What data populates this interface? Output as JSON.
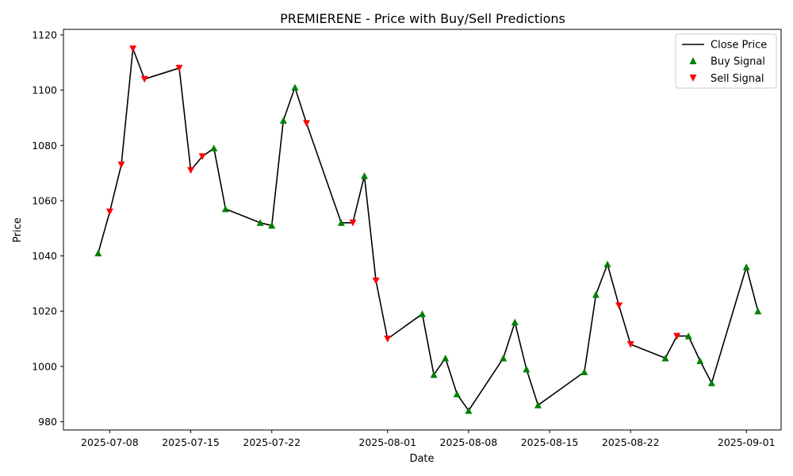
{
  "chart_data": {
    "type": "line",
    "title": "PREMIERENE - Price with Buy/Sell Predictions",
    "xlabel": "Date",
    "ylabel": "Price",
    "xlim": [
      "2025-07-04",
      "2025-09-04"
    ],
    "ylim": [
      977,
      1122
    ],
    "x_ticks": [
      "2025-07-08",
      "2025-07-15",
      "2025-07-22",
      "2025-08-01",
      "2025-08-08",
      "2025-08-15",
      "2025-08-22",
      "2025-09-01"
    ],
    "y_ticks": [
      980,
      1000,
      1020,
      1040,
      1060,
      1080,
      1100,
      1120
    ],
    "legend_position": "top-right",
    "grid": false,
    "colors": {
      "line": "#000000",
      "buy": "#008000",
      "sell": "#ff0000"
    },
    "legend": [
      {
        "label": "Close Price",
        "kind": "line"
      },
      {
        "label": "Buy Signal",
        "kind": "buy"
      },
      {
        "label": "Sell Signal",
        "kind": "sell"
      }
    ],
    "series": [
      {
        "name": "Close Price",
        "points": [
          {
            "date": "2025-07-07",
            "price": 1041,
            "signal": "buy"
          },
          {
            "date": "2025-07-08",
            "price": 1056,
            "signal": "sell"
          },
          {
            "date": "2025-07-09",
            "price": 1073,
            "signal": "sell"
          },
          {
            "date": "2025-07-10",
            "price": 1115,
            "signal": "sell"
          },
          {
            "date": "2025-07-11",
            "price": 1104,
            "signal": "sell"
          },
          {
            "date": "2025-07-14",
            "price": 1108,
            "signal": "sell"
          },
          {
            "date": "2025-07-15",
            "price": 1071,
            "signal": "sell"
          },
          {
            "date": "2025-07-16",
            "price": 1076,
            "signal": "sell"
          },
          {
            "date": "2025-07-17",
            "price": 1079,
            "signal": "buy"
          },
          {
            "date": "2025-07-18",
            "price": 1057,
            "signal": "buy"
          },
          {
            "date": "2025-07-21",
            "price": 1052,
            "signal": "buy"
          },
          {
            "date": "2025-07-22",
            "price": 1051,
            "signal": "buy"
          },
          {
            "date": "2025-07-23",
            "price": 1089,
            "signal": "buy"
          },
          {
            "date": "2025-07-24",
            "price": 1101,
            "signal": "buy"
          },
          {
            "date": "2025-07-25",
            "price": 1088,
            "signal": "sell"
          },
          {
            "date": "2025-07-28",
            "price": 1052,
            "signal": "buy"
          },
          {
            "date": "2025-07-29",
            "price": 1052,
            "signal": "sell"
          },
          {
            "date": "2025-07-30",
            "price": 1069,
            "signal": "buy"
          },
          {
            "date": "2025-07-31",
            "price": 1031,
            "signal": "sell"
          },
          {
            "date": "2025-08-01",
            "price": 1010,
            "signal": "sell"
          },
          {
            "date": "2025-08-04",
            "price": 1019,
            "signal": "buy"
          },
          {
            "date": "2025-08-05",
            "price": 997,
            "signal": "buy"
          },
          {
            "date": "2025-08-06",
            "price": 1003,
            "signal": "buy"
          },
          {
            "date": "2025-08-07",
            "price": 990,
            "signal": "buy"
          },
          {
            "date": "2025-08-08",
            "price": 984,
            "signal": "buy"
          },
          {
            "date": "2025-08-11",
            "price": 1003,
            "signal": "buy"
          },
          {
            "date": "2025-08-12",
            "price": 1016,
            "signal": "buy"
          },
          {
            "date": "2025-08-13",
            "price": 999,
            "signal": "buy"
          },
          {
            "date": "2025-08-14",
            "price": 986,
            "signal": "buy"
          },
          {
            "date": "2025-08-18",
            "price": 998,
            "signal": "buy"
          },
          {
            "date": "2025-08-19",
            "price": 1026,
            "signal": "buy"
          },
          {
            "date": "2025-08-20",
            "price": 1037,
            "signal": "buy"
          },
          {
            "date": "2025-08-21",
            "price": 1022,
            "signal": "sell"
          },
          {
            "date": "2025-08-22",
            "price": 1008,
            "signal": "sell"
          },
          {
            "date": "2025-08-25",
            "price": 1003,
            "signal": "buy"
          },
          {
            "date": "2025-08-26",
            "price": 1011,
            "signal": "sell"
          },
          {
            "date": "2025-08-27",
            "price": 1011,
            "signal": "buy"
          },
          {
            "date": "2025-08-28",
            "price": 1002,
            "signal": "buy"
          },
          {
            "date": "2025-08-29",
            "price": 994,
            "signal": "buy"
          },
          {
            "date": "2025-09-01",
            "price": 1036,
            "signal": "buy"
          },
          {
            "date": "2025-09-02",
            "price": 1020,
            "signal": "buy"
          }
        ]
      }
    ]
  }
}
